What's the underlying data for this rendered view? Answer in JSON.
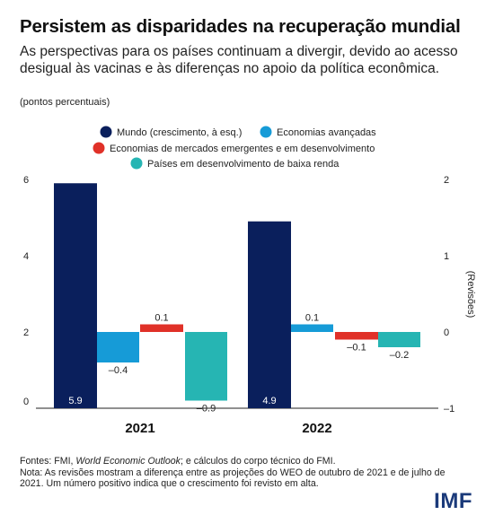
{
  "header": {
    "title": "Persistem as disparidades na recuperação mundial",
    "subtitle": "As perspectivas para os países continuam a divergir, devido ao acesso desigual às vacinas e às diferenças no apoio da política econômica.",
    "units": "(pontos percentuais)"
  },
  "chart_data": {
    "type": "bar",
    "categories": [
      "2021",
      "2022"
    ],
    "y_left": {
      "min": 0,
      "max": 6,
      "ticks": [
        0,
        2,
        4,
        6
      ]
    },
    "y_right": {
      "min": -1,
      "max": 2,
      "ticks": [
        -1,
        0,
        1,
        2
      ],
      "label": "(Revisões)"
    },
    "series": [
      {
        "name": "Mundo (crescimento, à esq.)",
        "axis": "left",
        "color": "#0a1f5c",
        "values": [
          5.9,
          4.9
        ],
        "labels": [
          "5.9",
          "4.9"
        ]
      },
      {
        "name": "Economias avançadas",
        "axis": "right",
        "color": "#169bd7",
        "values": [
          -0.4,
          0.1
        ],
        "labels": [
          "–0.4",
          "0.1"
        ]
      },
      {
        "name": "Economias de mercados emergentes e em desenvolvimento",
        "axis": "right",
        "color": "#e03128",
        "values": [
          0.1,
          -0.1
        ],
        "labels": [
          "0.1",
          "–0.1"
        ]
      },
      {
        "name": "Países em desenvolvimento de baixa renda",
        "axis": "right",
        "color": "#26b5b3",
        "values": [
          -0.9,
          -0.2
        ],
        "labels": [
          "–0.9",
          "–0.2"
        ]
      }
    ],
    "legend_placement": "top",
    "grid": false
  },
  "footer": {
    "sources_prefix": "Fontes: FMI, ",
    "sources_title": "World Economic Outlook",
    "sources_suffix": "; e cálculos do corpo técnico do FMI.",
    "note": "Nota: As revisões mostram a diferença entre as projeções do WEO de outubro de 2021 e de julho de 2021. Um número positivo indica que o crescimento foi revisto em alta."
  },
  "logo": {
    "text": "IMF"
  }
}
